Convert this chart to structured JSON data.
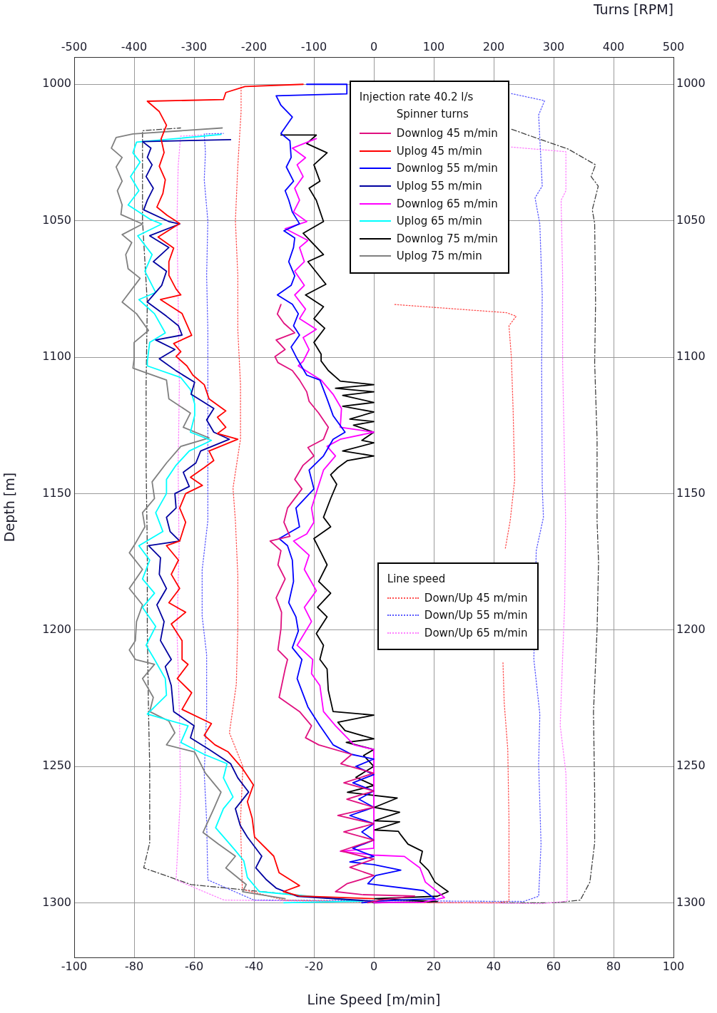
{
  "chart_data": {
    "type": "line",
    "xlabel": "Line Speed [m/min]",
    "ylabel": "Depth [m]",
    "x2label": "Turns [RPM]",
    "legend_title": "Injection rate 40.2 l/s",
    "annotations": [
      "Spinner turns",
      "Line speed"
    ],
    "xlim": [
      -100,
      100
    ],
    "xticks": [
      -100,
      -80,
      -60,
      -40,
      -20,
      0,
      20,
      40,
      60,
      80,
      100
    ],
    "x2lim": [
      -500,
      500
    ],
    "x2ticks": [
      -500,
      -400,
      -300,
      -200,
      -100,
      0,
      100,
      200,
      300,
      400,
      500
    ],
    "ylim": [
      1320,
      990
    ],
    "yticks": [
      1000,
      1050,
      1100,
      1150,
      1200,
      1250,
      1300
    ],
    "y2lim": [
      1320,
      990
    ],
    "y2ticks": [
      1000,
      1050,
      1100,
      1150,
      1200,
      1250,
      1300
    ],
    "grid": true,
    "legend": "right",
    "series": [
      {
        "name": "Downlog 45 m/min",
        "color": "#e0107f",
        "axis": "x2",
        "line_style": "solid",
        "x": [
          -155,
          -161,
          -150,
          -132,
          -163,
          -148,
          -165,
          -160,
          -136,
          -124,
          -112,
          -108,
          -92,
          -76,
          -84,
          -110,
          -100,
          -118,
          -132,
          -120,
          -144,
          -150,
          -140,
          -173,
          -155,
          -160,
          -148,
          -163,
          -154,
          -155,
          -160,
          -144,
          -148,
          -158,
          -124,
          -104,
          -114,
          -92,
          -37,
          -55,
          0,
          -50,
          0,
          -45,
          0,
          -60,
          0,
          -50,
          0,
          -55,
          0,
          -40,
          0,
          -45,
          -64,
          -20,
          68,
          10,
          -10
        ],
        "values": [
          1080.7,
          1084.2,
          1087.6,
          1091.1,
          1093.7,
          1097.2,
          1099.8,
          1102,
          1104.9,
          1108.4,
          1112.7,
          1116.2,
          1120.5,
          1125.7,
          1130.1,
          1133.1,
          1136.2,
          1139.6,
          1144.8,
          1148.3,
          1155.3,
          1160.5,
          1165.7,
          1167.4,
          1170.9,
          1176.1,
          1181.3,
          1188.2,
          1193.5,
          1199.5,
          1207.3,
          1210.8,
          1214.3,
          1224.7,
          1229.9,
          1235.1,
          1239.5,
          1242.1,
          1245.6,
          1249,
          1252.5,
          1256,
          1259,
          1262,
          1265,
          1268,
          1271,
          1274,
          1277,
          1281,
          1284,
          1287,
          1290,
          1293,
          1295.9,
          1297,
          1297.5,
          1299,
          1300
        ]
      },
      {
        "name": "Uplog 45 m/min",
        "color": "#ff0000",
        "axis": "x2",
        "line_style": "solid",
        "x": [
          -118,
          -215,
          -247,
          -251,
          -378,
          -358,
          -346,
          -355,
          -350,
          -358,
          -348,
          -352,
          -362,
          -345,
          -324,
          -360,
          -334,
          -342,
          -342,
          -330,
          -322,
          -356,
          -320,
          -304,
          -334,
          -322,
          -330,
          -312,
          -302,
          -283,
          -275,
          -247,
          -261,
          -247,
          -261,
          -227,
          -275,
          -267,
          -283,
          -306,
          -286,
          -314,
          -324,
          -314,
          -324,
          -346,
          -326,
          -338,
          -324,
          -342,
          -314,
          -338,
          -320,
          -320,
          -310,
          -328,
          -304,
          -320,
          -271,
          -283,
          -265,
          -243,
          -219,
          -201,
          -211,
          -203,
          -199,
          -167,
          -158,
          -124,
          -151,
          -124,
          0
        ],
        "values": [
          1000,
          1000.8,
          1003,
          1005.6,
          1006.2,
          1010,
          1015,
          1020,
          1025,
          1030,
          1035,
          1040,
          1045,
          1048,
          1051,
          1056,
          1060,
          1065,
          1070,
          1075,
          1077.2,
          1078.9,
          1084,
          1092,
          1095,
          1098,
          1099.7,
          1103.2,
          1106.6,
          1110.1,
          1115.3,
          1119.7,
          1122,
          1125.7,
          1128,
          1130.1,
          1134.4,
          1137.9,
          1140.5,
          1144,
          1147,
          1150,
          1155.3,
          1160.5,
          1167.4,
          1169.1,
          1174.4,
          1179.6,
          1184.8,
          1190,
          1193.5,
          1197.8,
          1203.9,
          1210.8,
          1212.6,
          1217.8,
          1223,
          1229.1,
          1234.3,
          1238.6,
          1242.1,
          1244.7,
          1250.8,
          1256.8,
          1262.9,
          1269,
          1275.9,
          1282.9,
          1289,
          1293.7,
          1295.9,
          1297.5,
          1298.5
        ]
      },
      {
        "name": "Downlog 55 m/min",
        "color": "#0000ff",
        "axis": "x2",
        "line_style": "solid",
        "x": [
          -112,
          -45,
          -45,
          -163,
          -155,
          -136,
          -155,
          -140,
          -138,
          -146,
          -134,
          -148,
          -142,
          -136,
          -124,
          -150,
          -132,
          -134,
          -142,
          -132,
          -138,
          -161,
          -136,
          -126,
          -134,
          -124,
          -138,
          -128,
          -112,
          -90,
          -78,
          -68,
          -48,
          -68,
          -84,
          -108,
          -100,
          -130,
          -124,
          -158,
          -144,
          -136,
          -134,
          -142,
          -130,
          -126,
          -136,
          -120,
          -128,
          -110,
          -90,
          -68,
          -37,
          0,
          -30,
          0,
          -35,
          0,
          -25,
          0,
          -40,
          0,
          -20,
          0,
          -35,
          0,
          -40,
          0,
          45,
          3,
          -10,
          83,
          102,
          1,
          -20
        ],
        "values": [
          1000,
          1000,
          1003.5,
          1004.2,
          1007.7,
          1012,
          1018,
          1020.7,
          1026.8,
          1030.3,
          1035.5,
          1039,
          1042.4,
          1046.8,
          1051.1,
          1053.7,
          1056.3,
          1059.8,
          1065,
          1070.2,
          1073.7,
          1077.2,
          1080.6,
          1084.1,
          1088.5,
          1091.9,
          1096.3,
          1100.6,
          1106.6,
          1108.4,
          1115.3,
          1121.4,
          1127.5,
          1130.1,
          1136.2,
          1141.4,
          1148.3,
          1155.3,
          1162.2,
          1166.5,
          1169.1,
          1174.4,
          1182.2,
          1190,
          1195.2,
          1200.4,
          1206.5,
          1210.8,
          1217.8,
          1228.2,
          1235.1,
          1242.1,
          1245.6,
          1247.3,
          1250,
          1253,
          1256,
          1259,
          1262,
          1265,
          1268,
          1271,
          1274,
          1277,
          1280,
          1283,
          1285,
          1286,
          1288,
          1290,
          1293,
          1295.5,
          1298.5,
          1299.4,
          1300
        ]
      },
      {
        "name": "Uplog 55 m/min",
        "color": "#0000a0",
        "axis": "x2",
        "line_style": "solid",
        "x": [
          -239,
          -386,
          -372,
          -378,
          -370,
          -380,
          -368,
          -378,
          -384,
          -342,
          -324,
          -374,
          -342,
          -368,
          -346,
          -354,
          -378,
          -346,
          -326,
          -320,
          -364,
          -332,
          -358,
          -330,
          -299,
          -305,
          -267,
          -279,
          -267,
          -241,
          -289,
          -297,
          -318,
          -308,
          -332,
          -330,
          -346,
          -340,
          -324,
          -376,
          -356,
          -358,
          -346,
          -362,
          -350,
          -356,
          -338,
          -348,
          -338,
          -334,
          -300,
          -306,
          -275,
          -239,
          -227,
          -209,
          -231,
          -223,
          -211,
          -187,
          -197,
          -179,
          -163,
          -128,
          0
        ],
        "values": [
          1020.3,
          1021,
          1023.4,
          1026.8,
          1029.5,
          1033.8,
          1038.1,
          1042.5,
          1046,
          1050.3,
          1051.2,
          1055.5,
          1059.8,
          1065,
          1068.5,
          1073.7,
          1079.8,
          1085,
          1088.5,
          1091.9,
          1093.7,
          1097.2,
          1100.6,
          1105,
          1109.2,
          1113.6,
          1118.8,
          1123,
          1127.5,
          1130.1,
          1134.4,
          1138.8,
          1142.2,
          1147.4,
          1150,
          1155.3,
          1158.7,
          1163.9,
          1167.4,
          1169.1,
          1173.5,
          1179.6,
          1184.8,
          1190.8,
          1196.9,
          1203.9,
          1210.8,
          1213.4,
          1220.4,
          1229.9,
          1235.1,
          1239.5,
          1243.8,
          1249,
          1254.2,
          1259.4,
          1265.5,
          1271.6,
          1275.9,
          1282.9,
          1287.2,
          1291.6,
          1294.6,
          1297.6,
          1299.4
        ]
      },
      {
        "name": "Downlog 65 m/min",
        "color": "#ff00ff",
        "axis": "x2",
        "line_style": "solid",
        "x": [
          -96,
          -136,
          -114,
          -128,
          -118,
          -132,
          -124,
          -134,
          -112,
          -148,
          -110,
          -124,
          -116,
          -132,
          -116,
          -132,
          -114,
          -124,
          -96,
          -118,
          -108,
          -118,
          -126,
          -88,
          -68,
          -54,
          -56,
          0,
          -56,
          -78,
          -64,
          -84,
          -94,
          -104,
          -100,
          -112,
          -134,
          -108,
          -116,
          -96,
          -116,
          -104,
          -128,
          -102,
          -104,
          -90,
          -84,
          -64,
          -33,
          0,
          0,
          -56,
          0,
          51,
          77,
          86,
          106,
          118,
          83,
          0
        ],
        "values": [
          1019.9,
          1023.4,
          1026.9,
          1029.5,
          1033.8,
          1038.1,
          1042.5,
          1046.8,
          1050.3,
          1052.9,
          1057.2,
          1059.8,
          1065,
          1068.5,
          1073.7,
          1077.2,
          1082.4,
          1085.9,
          1089.8,
          1092.8,
          1097.2,
          1101.5,
          1103.2,
          1108.4,
          1113.6,
          1118.8,
          1125.7,
          1127.5,
          1130.1,
          1132.7,
          1136.2,
          1141.4,
          1148.3,
          1155.3,
          1160.5,
          1164.8,
          1167.4,
          1172.6,
          1177.8,
          1185.6,
          1191.7,
          1196.9,
          1205.6,
          1210.8,
          1216,
          1220.4,
          1229.9,
          1235.1,
          1242.1,
          1243.8,
          1280,
          1281.1,
          1282.5,
          1283,
          1287.2,
          1292.4,
          1295.9,
          1298.1,
          1299.8,
          1300
        ]
      },
      {
        "name": "Uplog 65 m/min",
        "color": "#00ffff",
        "axis": "x2",
        "line_style": "solid",
        "x": [
          -255,
          -396,
          -402,
          -390,
          -406,
          -392,
          -410,
          -374,
          -354,
          -394,
          -370,
          -382,
          -364,
          -392,
          -366,
          -348,
          -374,
          -378,
          -378,
          -322,
          -306,
          -299,
          -299,
          -306,
          -271,
          -308,
          -330,
          -346,
          -346,
          -364,
          -352,
          -392,
          -374,
          -386,
          -366,
          -386,
          -364,
          -380,
          -366,
          -348,
          -346,
          -378,
          -310,
          -322,
          -283,
          -245,
          -251,
          -235,
          -251,
          -264,
          -233,
          -217,
          -211,
          -191,
          -18,
          -150
        ],
        "values": [
          1018.4,
          1021.2,
          1025.1,
          1028.5,
          1033.8,
          1039,
          1044.2,
          1049.4,
          1051.2,
          1055.5,
          1062.4,
          1068.5,
          1076.3,
          1078.9,
          1084.1,
          1091.1,
          1094.6,
          1101.5,
          1103.2,
          1107.5,
          1111.9,
          1117.1,
          1121.4,
          1127.5,
          1130.5,
          1134.4,
          1139.6,
          1144.8,
          1150,
          1157,
          1163.9,
          1169.1,
          1174.4,
          1181.3,
          1186.5,
          1191.7,
          1198.7,
          1205.6,
          1210.8,
          1217.8,
          1223.9,
          1230.8,
          1235.1,
          1241.2,
          1245.6,
          1249,
          1254.2,
          1261.2,
          1265.5,
          1272.5,
          1280.3,
          1284.6,
          1290.7,
          1295.9,
          1299.4,
          1300
        ]
      },
      {
        "name": "Downlog 75 m/min",
        "color": "#000000",
        "axis": "x2",
        "line_style": "solid",
        "x": [
          -155,
          -96,
          -112,
          -78,
          -100,
          -90,
          -108,
          -96,
          -84,
          -118,
          -84,
          -110,
          -80,
          -114,
          -84,
          -100,
          -82,
          -100,
          -88,
          -88,
          -76,
          -56,
          0,
          -64,
          0,
          -52,
          0,
          -52,
          0,
          -40,
          0,
          -34,
          0,
          -20,
          0,
          -52,
          0,
          -44,
          -60,
          -72,
          -62,
          -72,
          -84,
          -72,
          -100,
          -88,
          -78,
          -92,
          -72,
          -94,
          -78,
          -96,
          -84,
          -90,
          -78,
          -76,
          -68,
          0,
          -60,
          -48,
          0,
          -46,
          0,
          -17,
          0,
          -30,
          0,
          -44,
          39,
          1,
          43,
          1,
          43,
          1,
          41,
          45,
          57,
          81,
          77,
          91,
          102,
          124,
          106,
          1,
          106,
          0
        ],
        "values": [
          1018.6,
          1018.6,
          1021.7,
          1025.1,
          1029.5,
          1035.5,
          1038.1,
          1042.5,
          1050.3,
          1054.6,
          1062.4,
          1065,
          1073.3,
          1077.2,
          1081.5,
          1085.9,
          1089.4,
          1094.6,
          1098.9,
          1101.4,
          1104.9,
          1108.8,
          1110.1,
          1111.4,
          1112.7,
          1114,
          1116.6,
          1118,
          1120.1,
          1122.7,
          1123.6,
          1124.9,
          1127.5,
          1130.5,
          1131.4,
          1134.4,
          1136.2,
          1137.9,
          1140.5,
          1143.1,
          1146.6,
          1151.8,
          1158.7,
          1162.2,
          1166.5,
          1171.7,
          1176.1,
          1182.2,
          1186.5,
          1191.7,
          1195.2,
          1201.3,
          1205.6,
          1210.8,
          1214.3,
          1222.1,
          1229.9,
          1231.2,
          1233.8,
          1236.9,
          1239.9,
          1241.2,
          1243.8,
          1246,
          1250,
          1254,
          1257,
          1259.5,
          1261.6,
          1265,
          1266.8,
          1269.9,
          1270.3,
          1273.3,
          1273.8,
          1275.1,
          1278.5,
          1281.1,
          1285,
          1288.1,
          1292.4,
          1295.9,
          1297.6,
          1298.5,
          1299.5,
          1300
        ]
      },
      {
        "name": "Uplog 75 m/min",
        "color": "#808080",
        "axis": "x2",
        "line_style": "solid",
        "x": [
          -253,
          -402,
          -430,
          -438,
          -420,
          -430,
          -420,
          -428,
          -420,
          -422,
          -386,
          -420,
          -404,
          -414,
          -410,
          -390,
          -420,
          -396,
          -376,
          -400,
          -400,
          -402,
          -346,
          -342,
          -306,
          -318,
          -275,
          -322,
          -346,
          -370,
          -366,
          -386,
          -382,
          -398,
          -408,
          -386,
          -408,
          -386,
          -396,
          -398,
          -408,
          -398,
          -366,
          -386,
          -368,
          -374,
          -342,
          -332,
          -346,
          -299,
          -281,
          -255,
          -267,
          -285,
          -259,
          -231,
          -247,
          -213,
          -219,
          -148
        ],
        "values": [
          1016,
          1018.2,
          1019.5,
          1023.4,
          1026.8,
          1030.3,
          1035.5,
          1039,
          1044.2,
          1047.7,
          1051.2,
          1055.1,
          1058,
          1062.4,
          1067.6,
          1071.1,
          1079.8,
          1084.1,
          1090.2,
          1094.6,
          1100.6,
          1104,
          1108.4,
          1115.3,
          1120.5,
          1125.7,
          1129.6,
          1132.7,
          1138.8,
          1145.7,
          1151.8,
          1157,
          1162.2,
          1168.3,
          1171.7,
          1177.8,
          1184.8,
          1190.8,
          1196.9,
          1203.9,
          1207.3,
          1210.8,
          1212.6,
          1217.8,
          1224.7,
          1229.9,
          1233.4,
          1237.7,
          1242.1,
          1244.7,
          1252.5,
          1259.4,
          1265.5,
          1274.2,
          1278.5,
          1282.9,
          1287.2,
          1293.3,
          1295.9,
          1298.5
        ]
      },
      {
        "name": "Down/Up 45 m/min",
        "color": "#ff5050",
        "line_style": "dotted",
        "x": [
          7,
          44.3,
          47.5,
          45.1,
          45.9,
          46.5,
          47,
          45.5,
          43.9,
          null,
          null,
          43.1,
          43.5,
          44.7,
          45.1,
          45.1,
          41,
          10,
          -30,
          -43.9,
          -44.5,
          -43.7,
          -48.2,
          -45.9,
          -45.4,
          -45.4,
          -46.2,
          -47,
          -44.5,
          -44.5,
          -45.4,
          -45.4,
          -46.2,
          -45.4,
          -44.3,
          -44.3
        ],
        "values": [
          1080.7,
          1083.7,
          1085,
          1088.5,
          1100,
          1120,
          1145,
          1160,
          1170,
          null,
          null,
          1212,
          1226.5,
          1243.8,
          1270,
          1299.4,
          1300,
          1300,
          1299,
          1295,
          1270,
          1250,
          1237.7,
          1220,
          1200,
          1180,
          1160,
          1148,
          1130,
          1110,
          1090,
          1070,
          1050,
          1030,
          1010,
          1000.4
        ]
      },
      {
        "name": "Down/Up 55 m/min",
        "color": "#5a5aff",
        "line_style": "dotted",
        "x": [
          45.9,
          57,
          55,
          56.2,
          53.8,
          55.4,
          56.2,
          56,
          56.2,
          56.6,
          54.2,
          53.4,
          55.4,
          55,
          55.8,
          55,
          50,
          -40,
          -55.4,
          -55.8,
          -56.6,
          -55.8,
          -55.8,
          -57.3,
          -57.3,
          -55.4,
          -55.4,
          -55.4,
          -55.4,
          -55.8,
          -55.4,
          -56.6,
          -56.2,
          -56.6,
          -50.2
        ],
        "values": [
          1003.4,
          1006,
          1011.2,
          1037.3,
          1041.6,
          1051.2,
          1077.2,
          1102.4,
          1147.4,
          1158.7,
          1170.9,
          1210.8,
          1230.8,
          1249,
          1278.5,
          1297.6,
          1299.5,
          1299,
          1291.6,
          1270,
          1252.5,
          1230,
          1209,
          1195,
          1178,
          1160,
          1130,
          1110,
          1090,
          1070,
          1050,
          1035,
          1025,
          1018.2,
          1018
        ]
      },
      {
        "name": "Down/Up 65 m/min",
        "color": "#ff80ff",
        "line_style": "dotted",
        "x": [
          45.9,
          64.1,
          64.1,
          62.5,
          63,
          63,
          63.5,
          64,
          63.7,
          63,
          62.2,
          64.1,
          64.5,
          64.5,
          56,
          -50,
          -66,
          -64.5,
          -64.9,
          -65.7,
          -65,
          -65.3,
          -64.9,
          -65.3,
          -65.7,
          -65.3,
          -64.5,
          -57.3
        ],
        "values": [
          1023,
          1024.7,
          1039,
          1042.5,
          1070,
          1102,
          1130,
          1160,
          1190,
          1210,
          1235,
          1252.5,
          1280,
          1299.4,
          1300.3,
          1299,
          1291.6,
          1260,
          1230,
          1200,
          1170,
          1140,
          1110,
          1080,
          1050,
          1030,
          1019,
          1018.6
        ]
      },
      {
        "color": "#404040",
        "line_style": "dashed",
        "x": [
          46,
          65,
          74,
          72.5,
          74.9,
          72.9,
          73.7,
          74,
          73.7,
          74.5,
          74.5,
          75,
          74.5,
          73.3,
          73.7,
          73.7,
          72.1,
          68.9,
          60,
          0,
          -61,
          -76.8,
          -74.8,
          -74.8,
          -75.2,
          -75.6,
          -75.6,
          -76,
          -76,
          -75.6,
          -77.2,
          -77.2,
          -77.2,
          -64.5
        ],
        "values": [
          1016.5,
          1023.8,
          1029.5,
          1033.8,
          1037.3,
          1046,
          1051,
          1080,
          1102,
          1130,
          1160,
          1175,
          1200,
          1230,
          1260,
          1278,
          1292.4,
          1299,
          1300,
          1300,
          1293.3,
          1287.2,
          1278,
          1250,
          1230,
          1200,
          1170,
          1140,
          1110,
          1080,
          1050,
          1030,
          1017,
          1016
        ]
      }
    ]
  }
}
